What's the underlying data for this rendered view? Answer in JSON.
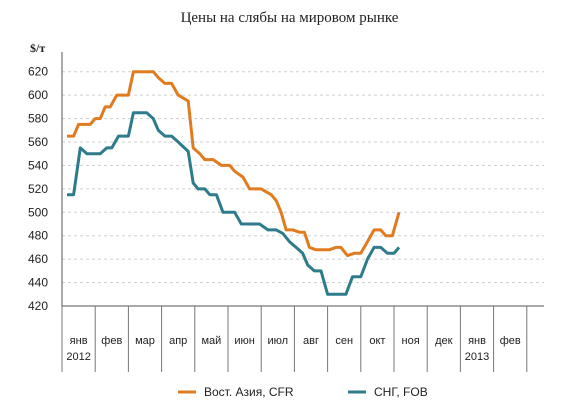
{
  "chart_data": {
    "type": "line",
    "title": "Цены на слябы на мировом рынке",
    "ylabel": "$/т",
    "ylim": [
      420,
      630
    ],
    "yticks": [
      420,
      440,
      460,
      480,
      500,
      520,
      540,
      560,
      580,
      600,
      620
    ],
    "grid": true,
    "legend_position": "bottom",
    "x_tick_labels": [
      {
        "label": "янв",
        "sublabel": "2012"
      },
      {
        "label": "фев",
        "sublabel": ""
      },
      {
        "label": "мар",
        "sublabel": ""
      },
      {
        "label": "апр",
        "sublabel": ""
      },
      {
        "label": "май",
        "sublabel": ""
      },
      {
        "label": "июн",
        "sublabel": ""
      },
      {
        "label": "июл",
        "sublabel": ""
      },
      {
        "label": "авг",
        "sublabel": ""
      },
      {
        "label": "сен",
        "sublabel": ""
      },
      {
        "label": "окт",
        "sublabel": ""
      },
      {
        "label": "ноя",
        "sublabel": ""
      },
      {
        "label": "дек",
        "sublabel": ""
      },
      {
        "label": "янв",
        "sublabel": "2013"
      },
      {
        "label": "фев",
        "sublabel": ""
      }
    ],
    "x_unit": "month index (0 = янв 2012)",
    "series": [
      {
        "name": "Вост. Азия, CFR",
        "color": "#e07b1f",
        "points": [
          [
            0.0,
            565
          ],
          [
            0.2,
            565
          ],
          [
            0.35,
            575
          ],
          [
            0.7,
            575
          ],
          [
            0.85,
            580
          ],
          [
            1.0,
            580
          ],
          [
            1.15,
            590
          ],
          [
            1.3,
            590
          ],
          [
            1.5,
            600
          ],
          [
            1.85,
            600
          ],
          [
            2.0,
            620
          ],
          [
            2.6,
            620
          ],
          [
            2.75,
            615
          ],
          [
            2.95,
            610
          ],
          [
            3.15,
            610
          ],
          [
            3.35,
            600
          ],
          [
            3.65,
            595
          ],
          [
            3.8,
            555
          ],
          [
            4.0,
            550
          ],
          [
            4.15,
            545
          ],
          [
            4.4,
            545
          ],
          [
            4.65,
            540
          ],
          [
            4.9,
            540
          ],
          [
            5.05,
            535
          ],
          [
            5.3,
            530
          ],
          [
            5.5,
            520
          ],
          [
            5.85,
            520
          ],
          [
            6.15,
            515
          ],
          [
            6.3,
            510
          ],
          [
            6.45,
            500
          ],
          [
            6.6,
            485
          ],
          [
            6.8,
            485
          ],
          [
            7.0,
            483
          ],
          [
            7.15,
            483
          ],
          [
            7.3,
            470
          ],
          [
            7.5,
            468
          ],
          [
            7.9,
            468
          ],
          [
            8.1,
            470
          ],
          [
            8.25,
            470
          ],
          [
            8.45,
            463
          ],
          [
            8.65,
            465
          ],
          [
            8.85,
            465
          ],
          [
            9.05,
            475
          ],
          [
            9.25,
            485
          ],
          [
            9.45,
            485
          ],
          [
            9.6,
            480
          ],
          [
            9.8,
            480
          ],
          [
            10.0,
            500
          ]
        ]
      },
      {
        "name": "СНГ, FOB",
        "color": "#2e7b8c",
        "points": [
          [
            0.0,
            515
          ],
          [
            0.2,
            515
          ],
          [
            0.4,
            555
          ],
          [
            0.6,
            550
          ],
          [
            1.0,
            550
          ],
          [
            1.2,
            555
          ],
          [
            1.35,
            555
          ],
          [
            1.55,
            565
          ],
          [
            1.85,
            565
          ],
          [
            2.0,
            585
          ],
          [
            2.4,
            585
          ],
          [
            2.6,
            580
          ],
          [
            2.75,
            570
          ],
          [
            2.95,
            565
          ],
          [
            3.15,
            565
          ],
          [
            3.35,
            560
          ],
          [
            3.65,
            552
          ],
          [
            3.8,
            525
          ],
          [
            3.95,
            520
          ],
          [
            4.15,
            520
          ],
          [
            4.3,
            515
          ],
          [
            4.5,
            515
          ],
          [
            4.7,
            500
          ],
          [
            5.05,
            500
          ],
          [
            5.25,
            490
          ],
          [
            5.8,
            490
          ],
          [
            6.05,
            485
          ],
          [
            6.3,
            485
          ],
          [
            6.5,
            482
          ],
          [
            6.7,
            475
          ],
          [
            6.9,
            470
          ],
          [
            7.1,
            465
          ],
          [
            7.25,
            455
          ],
          [
            7.45,
            450
          ],
          [
            7.65,
            450
          ],
          [
            7.85,
            430
          ],
          [
            8.4,
            430
          ],
          [
            8.6,
            445
          ],
          [
            8.85,
            445
          ],
          [
            9.05,
            460
          ],
          [
            9.25,
            470
          ],
          [
            9.45,
            470
          ],
          [
            9.65,
            465
          ],
          [
            9.85,
            465
          ],
          [
            10.0,
            470
          ]
        ]
      }
    ]
  }
}
